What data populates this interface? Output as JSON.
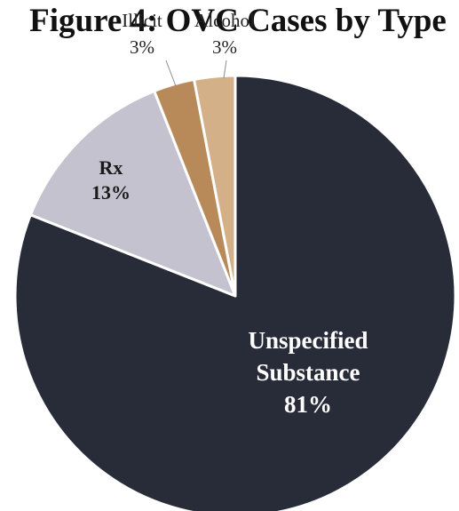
{
  "chart_data": {
    "type": "pie",
    "title": "Figure 4: OVC Cases by Type",
    "slices": [
      {
        "label_lines": [
          "Unspecified",
          "Substance"
        ],
        "pct_text": "81%",
        "value": 81,
        "color": "#282c39",
        "label_color": "#ffffff",
        "bold": true
      },
      {
        "label_lines": [
          "Rx"
        ],
        "pct_text": "13%",
        "value": 13,
        "color": "#c3c2ce",
        "label_color": "#1a1a1a",
        "bold": true
      },
      {
        "label_lines": [
          "Illicit"
        ],
        "pct_text": "3%",
        "value": 3,
        "color": "#b98a59",
        "label_color": "#222222",
        "bold": false
      },
      {
        "label_lines": [
          "Alcohol"
        ],
        "pct_text": "3%",
        "value": 3,
        "color": "#d4b089",
        "label_color": "#222222",
        "bold": false
      }
    ]
  }
}
